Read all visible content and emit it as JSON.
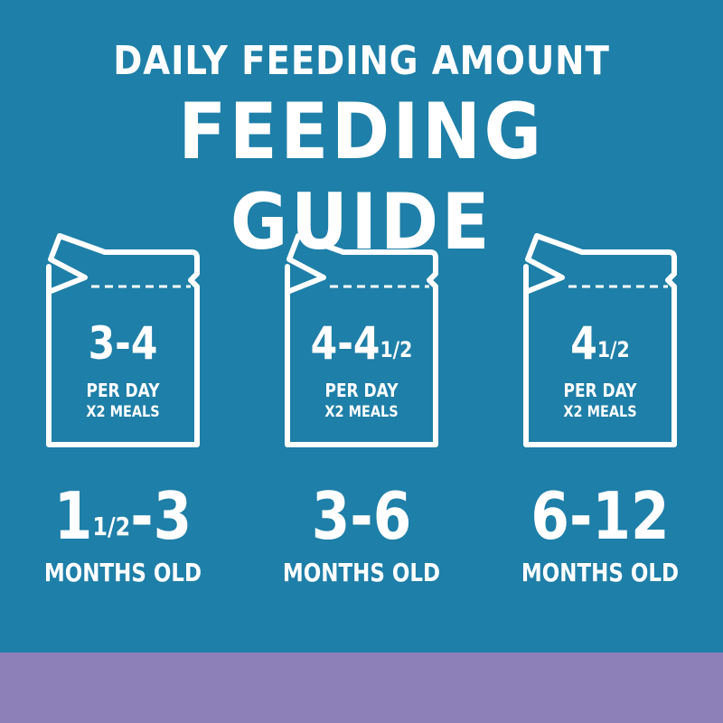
{
  "header": {
    "subtitle": "DAILY FEEDING AMOUNT",
    "title": "FEEDING GUIDE"
  },
  "colors": {
    "background": "#1e7fa8",
    "bottom_band": "#8d80b9",
    "text": "#ffffff"
  },
  "icons": {
    "bag": "food-bag-icon"
  },
  "columns": [
    {
      "amount_main": "3-4",
      "amount_fraction": "",
      "per_day": "PER DAY",
      "meals": "X2 MEALS",
      "age_lead": "1",
      "age_fraction": "1/2",
      "age_rest": "-3",
      "age_unit": "MONTHS OLD"
    },
    {
      "amount_main": "4-4",
      "amount_fraction": "1/2",
      "per_day": "PER DAY",
      "meals": "X2 MEALS",
      "age_lead": "3-6",
      "age_fraction": "",
      "age_rest": "",
      "age_unit": "MONTHS OLD"
    },
    {
      "amount_main": "4",
      "amount_fraction": "1/2",
      "per_day": "PER DAY",
      "meals": "X2 MEALS",
      "age_lead": "6-12",
      "age_fraction": "",
      "age_rest": "",
      "age_unit": "MONTHS OLD"
    }
  ]
}
